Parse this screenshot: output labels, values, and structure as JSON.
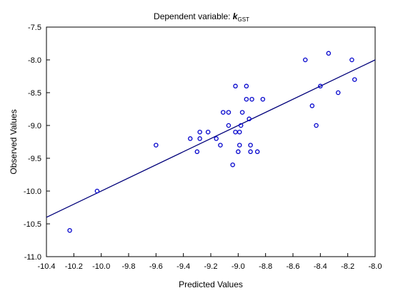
{
  "chart_data": {
    "type": "scatter",
    "title_prefix": "Dependent variable: ",
    "title_symbol": "k",
    "title_subscript": "GST",
    "xlabel": "Predicted Values",
    "ylabel": "Observed Values",
    "xlim": [
      -10.4,
      -8.0
    ],
    "ylim": [
      -11.0,
      -7.5
    ],
    "xticks": [
      -10.4,
      -10.2,
      -10.0,
      -9.8,
      -9.6,
      -9.4,
      -9.2,
      -9.0,
      -8.8,
      -8.6,
      -8.4,
      -8.2,
      -8.0
    ],
    "yticks": [
      -7.5,
      -8.0,
      -8.5,
      -9.0,
      -9.5,
      -10.0,
      -10.5,
      -11.0
    ],
    "xtick_labels": [
      "-10.4",
      "-10.2",
      "-10.0",
      "-9.8",
      "-9.6",
      "-9.4",
      "-9.2",
      "-9.0",
      "-8.8",
      "-8.6",
      "-8.4",
      "-8.2",
      "-8.0"
    ],
    "ytick_labels": [
      "-7.5",
      "-8.0",
      "-8.5",
      "-9.0",
      "-9.5",
      "-10.0",
      "-10.5",
      "-11.0"
    ],
    "grid": false,
    "colors": {
      "points": "#0000cc",
      "fit_line": "#00007a",
      "axes": "#000000"
    },
    "points": [
      {
        "x": -10.23,
        "y": -10.6
      },
      {
        "x": -10.03,
        "y": -10.0
      },
      {
        "x": -9.6,
        "y": -9.3
      },
      {
        "x": -9.35,
        "y": -9.2
      },
      {
        "x": -9.3,
        "y": -9.4
      },
      {
        "x": -9.28,
        "y": -9.1
      },
      {
        "x": -9.28,
        "y": -9.2
      },
      {
        "x": -9.22,
        "y": -9.1
      },
      {
        "x": -9.16,
        "y": -9.2
      },
      {
        "x": -9.13,
        "y": -9.3
      },
      {
        "x": -9.11,
        "y": -8.8
      },
      {
        "x": -9.07,
        "y": -8.8
      },
      {
        "x": -9.07,
        "y": -9.0
      },
      {
        "x": -9.04,
        "y": -9.6
      },
      {
        "x": -9.02,
        "y": -8.4
      },
      {
        "x": -9.02,
        "y": -9.1
      },
      {
        "x": -9.0,
        "y": -9.4
      },
      {
        "x": -8.99,
        "y": -9.1
      },
      {
        "x": -8.99,
        "y": -9.3
      },
      {
        "x": -8.98,
        "y": -9.0
      },
      {
        "x": -8.97,
        "y": -8.8
      },
      {
        "x": -8.94,
        "y": -8.4
      },
      {
        "x": -8.94,
        "y": -8.6
      },
      {
        "x": -8.92,
        "y": -8.9
      },
      {
        "x": -8.91,
        "y": -9.3
      },
      {
        "x": -8.91,
        "y": -9.4
      },
      {
        "x": -8.9,
        "y": -8.6
      },
      {
        "x": -8.86,
        "y": -9.4
      },
      {
        "x": -8.82,
        "y": -8.6
      },
      {
        "x": -8.51,
        "y": -8.0
      },
      {
        "x": -8.46,
        "y": -8.7
      },
      {
        "x": -8.43,
        "y": -9.0
      },
      {
        "x": -8.4,
        "y": -8.4
      },
      {
        "x": -8.34,
        "y": -7.9
      },
      {
        "x": -8.27,
        "y": -8.5
      },
      {
        "x": -8.17,
        "y": -8.0
      },
      {
        "x": -8.15,
        "y": -8.3
      }
    ],
    "fit_line": {
      "x": [
        -10.4,
        -8.0
      ],
      "y": [
        -10.4,
        -8.0
      ]
    }
  }
}
